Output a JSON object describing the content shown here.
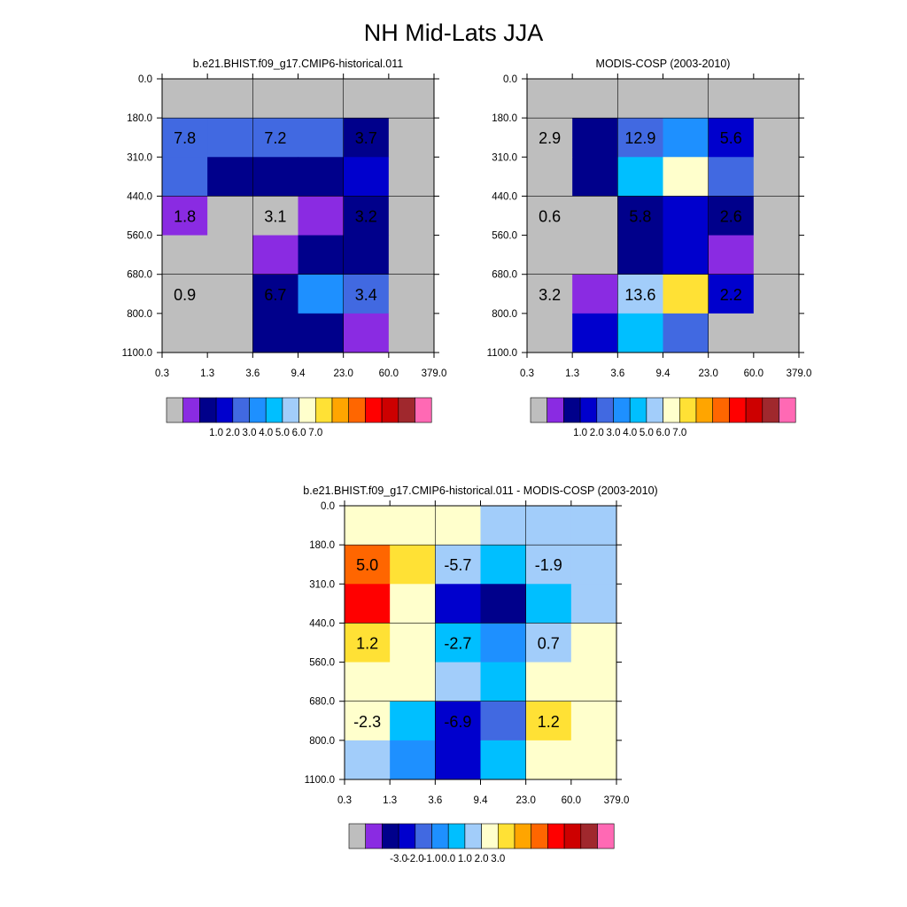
{
  "page_title": "NH Mid-Lats JJA",
  "colors": {
    "missing": "#bebebe",
    "abs_scale": [
      "#bebebe",
      "#8a2be2",
      "#00008b",
      "#0000cd",
      "#4169e1",
      "#1e90ff",
      "#00bfff",
      "#a2cdfa",
      "#ffffcc",
      "#ffe135",
      "#ffa500",
      "#ff6600",
      "#ff0000",
      "#cd0000",
      "#a0282d",
      "#ff69b4"
    ],
    "diff_scale": [
      "#bebebe",
      "#8a2be2",
      "#00008b",
      "#0000cd",
      "#4169e1",
      "#1e90ff",
      "#00bfff",
      "#a2cdfa",
      "#ffffcc",
      "#ffe135",
      "#ffa500",
      "#ff6600",
      "#ff0000",
      "#cd0000",
      "#a0282d",
      "#ff69b4"
    ]
  },
  "chart_data": [
    {
      "type": "heatmap",
      "title": "b.e21.BHIST.f09_g17.CMIP6-historical.011",
      "x_ticks": [
        "0.3",
        "1.3",
        "3.6",
        "9.4",
        "23.0",
        "60.0",
        "379.0"
      ],
      "y_ticks": [
        "0.0",
        "180.0",
        "310.0",
        "440.0",
        "560.0",
        "680.0",
        "800.0",
        "1100.0"
      ],
      "cell_colors": [
        [
          0,
          0,
          0,
          0,
          0,
          0
        ],
        [
          4,
          4,
          4,
          4,
          2,
          0
        ],
        [
          4,
          2,
          2,
          2,
          3,
          0
        ],
        [
          1,
          0,
          0,
          1,
          2,
          0
        ],
        [
          0,
          0,
          1,
          2,
          2,
          0
        ],
        [
          0,
          0,
          2,
          5,
          4,
          0
        ],
        [
          0,
          0,
          2,
          2,
          1,
          0
        ]
      ],
      "group_labels": [
        {
          "row": 1.5,
          "col": 0.5,
          "text": "7.8"
        },
        {
          "row": 1.5,
          "col": 2.5,
          "text": "7.2"
        },
        {
          "row": 1.5,
          "col": 4.5,
          "text": "3.7"
        },
        {
          "row": 3.5,
          "col": 0.5,
          "text": "1.8"
        },
        {
          "row": 3.5,
          "col": 2.5,
          "text": "3.1"
        },
        {
          "row": 3.5,
          "col": 4.5,
          "text": "3.2"
        },
        {
          "row": 5.5,
          "col": 0.5,
          "text": "0.9"
        },
        {
          "row": 5.5,
          "col": 2.5,
          "text": "6.7"
        },
        {
          "row": 5.5,
          "col": 4.5,
          "text": "3.4"
        }
      ],
      "colorbar_labels": [
        "1.0",
        "2.0",
        "3.0",
        "4.0",
        "5.0",
        "6.0",
        "7.0"
      ]
    },
    {
      "type": "heatmap",
      "title": "MODIS-COSP (2003-2010)",
      "x_ticks": [
        "0.3",
        "1.3",
        "3.6",
        "9.4",
        "23.0",
        "60.0",
        "379.0"
      ],
      "y_ticks": [
        "0.0",
        "180.0",
        "310.0",
        "440.0",
        "560.0",
        "680.0",
        "800.0",
        "1100.0"
      ],
      "cell_colors": [
        [
          0,
          0,
          0,
          0,
          0,
          0
        ],
        [
          0,
          2,
          4,
          5,
          3,
          0
        ],
        [
          0,
          2,
          6,
          8,
          4,
          0
        ],
        [
          0,
          0,
          2,
          3,
          2,
          0
        ],
        [
          0,
          0,
          2,
          3,
          1,
          0
        ],
        [
          0,
          1,
          7,
          9,
          3,
          0
        ],
        [
          0,
          3,
          6,
          4,
          0,
          0
        ]
      ],
      "group_labels": [
        {
          "row": 1.5,
          "col": 0.5,
          "text": "2.9"
        },
        {
          "row": 1.5,
          "col": 2.5,
          "text": "12.9"
        },
        {
          "row": 1.5,
          "col": 4.5,
          "text": "5.6"
        },
        {
          "row": 3.5,
          "col": 0.5,
          "text": "0.6"
        },
        {
          "row": 3.5,
          "col": 2.5,
          "text": "5.8"
        },
        {
          "row": 3.5,
          "col": 4.5,
          "text": "2.6"
        },
        {
          "row": 5.5,
          "col": 0.5,
          "text": "3.2"
        },
        {
          "row": 5.5,
          "col": 2.5,
          "text": "13.6"
        },
        {
          "row": 5.5,
          "col": 4.5,
          "text": "2.2"
        }
      ],
      "colorbar_labels": [
        "1.0",
        "2.0",
        "3.0",
        "4.0",
        "5.0",
        "6.0",
        "7.0"
      ]
    },
    {
      "type": "heatmap",
      "title": "b.e21.BHIST.f09_g17.CMIP6-historical.011 - MODIS-COSP (2003-2010)",
      "x_ticks": [
        "0.3",
        "1.3",
        "3.6",
        "9.4",
        "23.0",
        "60.0",
        "379.0"
      ],
      "y_ticks": [
        "0.0",
        "180.0",
        "310.0",
        "440.0",
        "560.0",
        "680.0",
        "800.0",
        "1100.0"
      ],
      "cell_colors": [
        [
          8,
          8,
          8,
          7,
          7,
          7
        ],
        [
          11,
          9,
          7,
          6,
          7,
          7
        ],
        [
          12,
          8,
          3,
          2,
          6,
          7
        ],
        [
          9,
          8,
          6,
          5,
          7,
          8
        ],
        [
          8,
          8,
          7,
          6,
          8,
          8
        ],
        [
          8,
          6,
          3,
          4,
          9,
          8
        ],
        [
          7,
          5,
          3,
          6,
          8,
          8
        ]
      ],
      "group_labels": [
        {
          "row": 1.5,
          "col": 0.5,
          "text": "5.0"
        },
        {
          "row": 1.5,
          "col": 2.5,
          "text": "-5.7"
        },
        {
          "row": 1.5,
          "col": 4.5,
          "text": "-1.9"
        },
        {
          "row": 3.5,
          "col": 0.5,
          "text": "1.2"
        },
        {
          "row": 3.5,
          "col": 2.5,
          "text": "-2.7"
        },
        {
          "row": 3.5,
          "col": 4.5,
          "text": "0.7"
        },
        {
          "row": 5.5,
          "col": 0.5,
          "text": "-2.3"
        },
        {
          "row": 5.5,
          "col": 2.5,
          "text": "-6.9"
        },
        {
          "row": 5.5,
          "col": 4.5,
          "text": "1.2"
        }
      ],
      "colorbar_labels": [
        "-3.0",
        "-2.0",
        "-1.0",
        "0.0",
        "1.0",
        "2.0",
        "3.0"
      ]
    }
  ]
}
